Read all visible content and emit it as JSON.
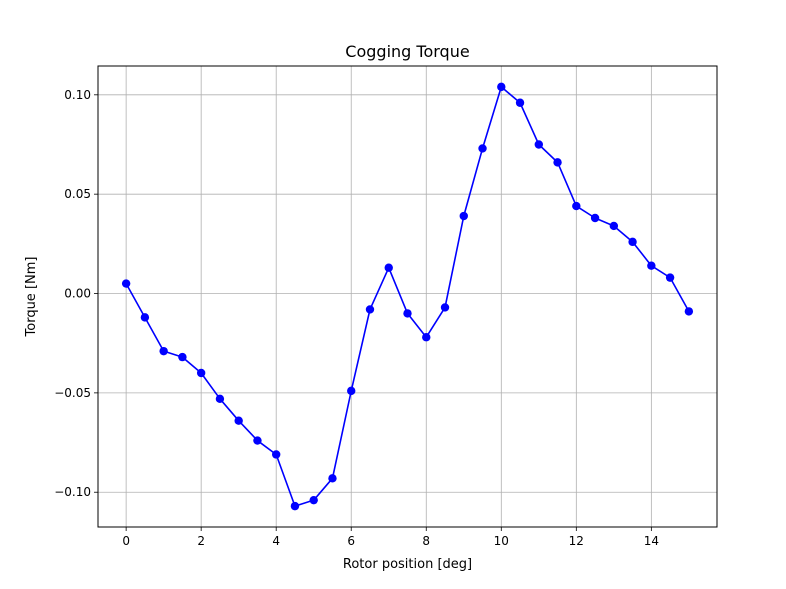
{
  "chart_data": {
    "type": "line",
    "title": "Cogging Torque",
    "xlabel": "Rotor position [deg]",
    "ylabel": "Torque [Nm]",
    "xlim": [
      -0.75,
      15.75
    ],
    "ylim": [
      -0.1175,
      0.1145
    ],
    "xticks": [
      0,
      2,
      4,
      6,
      8,
      10,
      12,
      14
    ],
    "xtick_labels": [
      "0",
      "2",
      "4",
      "6",
      "8",
      "10",
      "12",
      "14"
    ],
    "yticks": [
      -0.1,
      -0.05,
      0.0,
      0.05,
      0.1
    ],
    "ytick_labels": [
      "−0.10",
      "−0.05",
      "0.00",
      "0.05",
      "0.10"
    ],
    "grid": true,
    "series": [
      {
        "color": "#0000ff",
        "marker": "circle",
        "x": [
          0,
          0.5,
          1,
          1.5,
          2,
          2.5,
          3,
          3.5,
          4,
          4.5,
          5,
          5.5,
          6,
          6.5,
          7,
          7.5,
          8,
          8.5,
          9,
          9.5,
          10,
          10.5,
          11,
          11.5,
          12,
          12.5,
          13,
          13.5,
          14,
          14.5,
          15
        ],
        "y": [
          0.005,
          -0.012,
          -0.029,
          -0.032,
          -0.04,
          -0.053,
          -0.064,
          -0.074,
          -0.081,
          -0.107,
          -0.104,
          -0.093,
          -0.049,
          -0.008,
          0.013,
          -0.01,
          -0.022,
          -0.007,
          0.039,
          0.073,
          0.104,
          0.096,
          0.075,
          0.066,
          0.044,
          0.038,
          0.034,
          0.026,
          0.014,
          0.008,
          -0.009
        ]
      }
    ]
  }
}
